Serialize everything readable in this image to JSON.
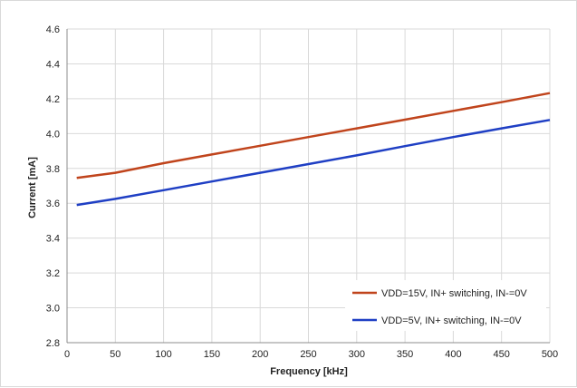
{
  "chart_data": {
    "type": "line",
    "title": "",
    "xlabel": "Frequency [kHz]",
    "ylabel": "Current  [mA]",
    "xlim": [
      0,
      500
    ],
    "ylim": [
      2.8,
      4.6
    ],
    "xticks": [
      0,
      50,
      100,
      150,
      200,
      250,
      300,
      350,
      400,
      450,
      500
    ],
    "yticks": [
      2.8,
      3.0,
      3.2,
      3.4,
      3.6,
      3.8,
      4.0,
      4.2,
      4.4,
      4.6
    ],
    "xtick_labels": [
      "0",
      "50",
      "100",
      "150",
      "200",
      "250",
      "300",
      "350",
      "400",
      "450",
      "500"
    ],
    "ytick_labels": [
      "2.8",
      "3.0",
      "3.2",
      "3.4",
      "3.6",
      "3.8",
      "4.0",
      "4.2",
      "4.4",
      "4.6"
    ],
    "grid": true,
    "legend_position": "bottom-right",
    "series": [
      {
        "name": "VDD=15V, IN+ switching, IN-=0V",
        "color": "#c0441c",
        "x": [
          10,
          50,
          100,
          150,
          200,
          250,
          300,
          350,
          400,
          450,
          500
        ],
        "y": [
          3.745,
          3.775,
          3.83,
          3.88,
          3.93,
          3.98,
          4.03,
          4.08,
          4.13,
          4.18,
          4.232
        ]
      },
      {
        "name": "VDD=5V, IN+ switching, IN-=0V",
        "color": "#1f3fc4",
        "x": [
          10,
          50,
          100,
          150,
          200,
          250,
          300,
          350,
          400,
          450,
          500
        ],
        "y": [
          3.59,
          3.625,
          3.675,
          3.725,
          3.775,
          3.825,
          3.875,
          3.928,
          3.98,
          4.03,
          4.078
        ]
      }
    ]
  }
}
